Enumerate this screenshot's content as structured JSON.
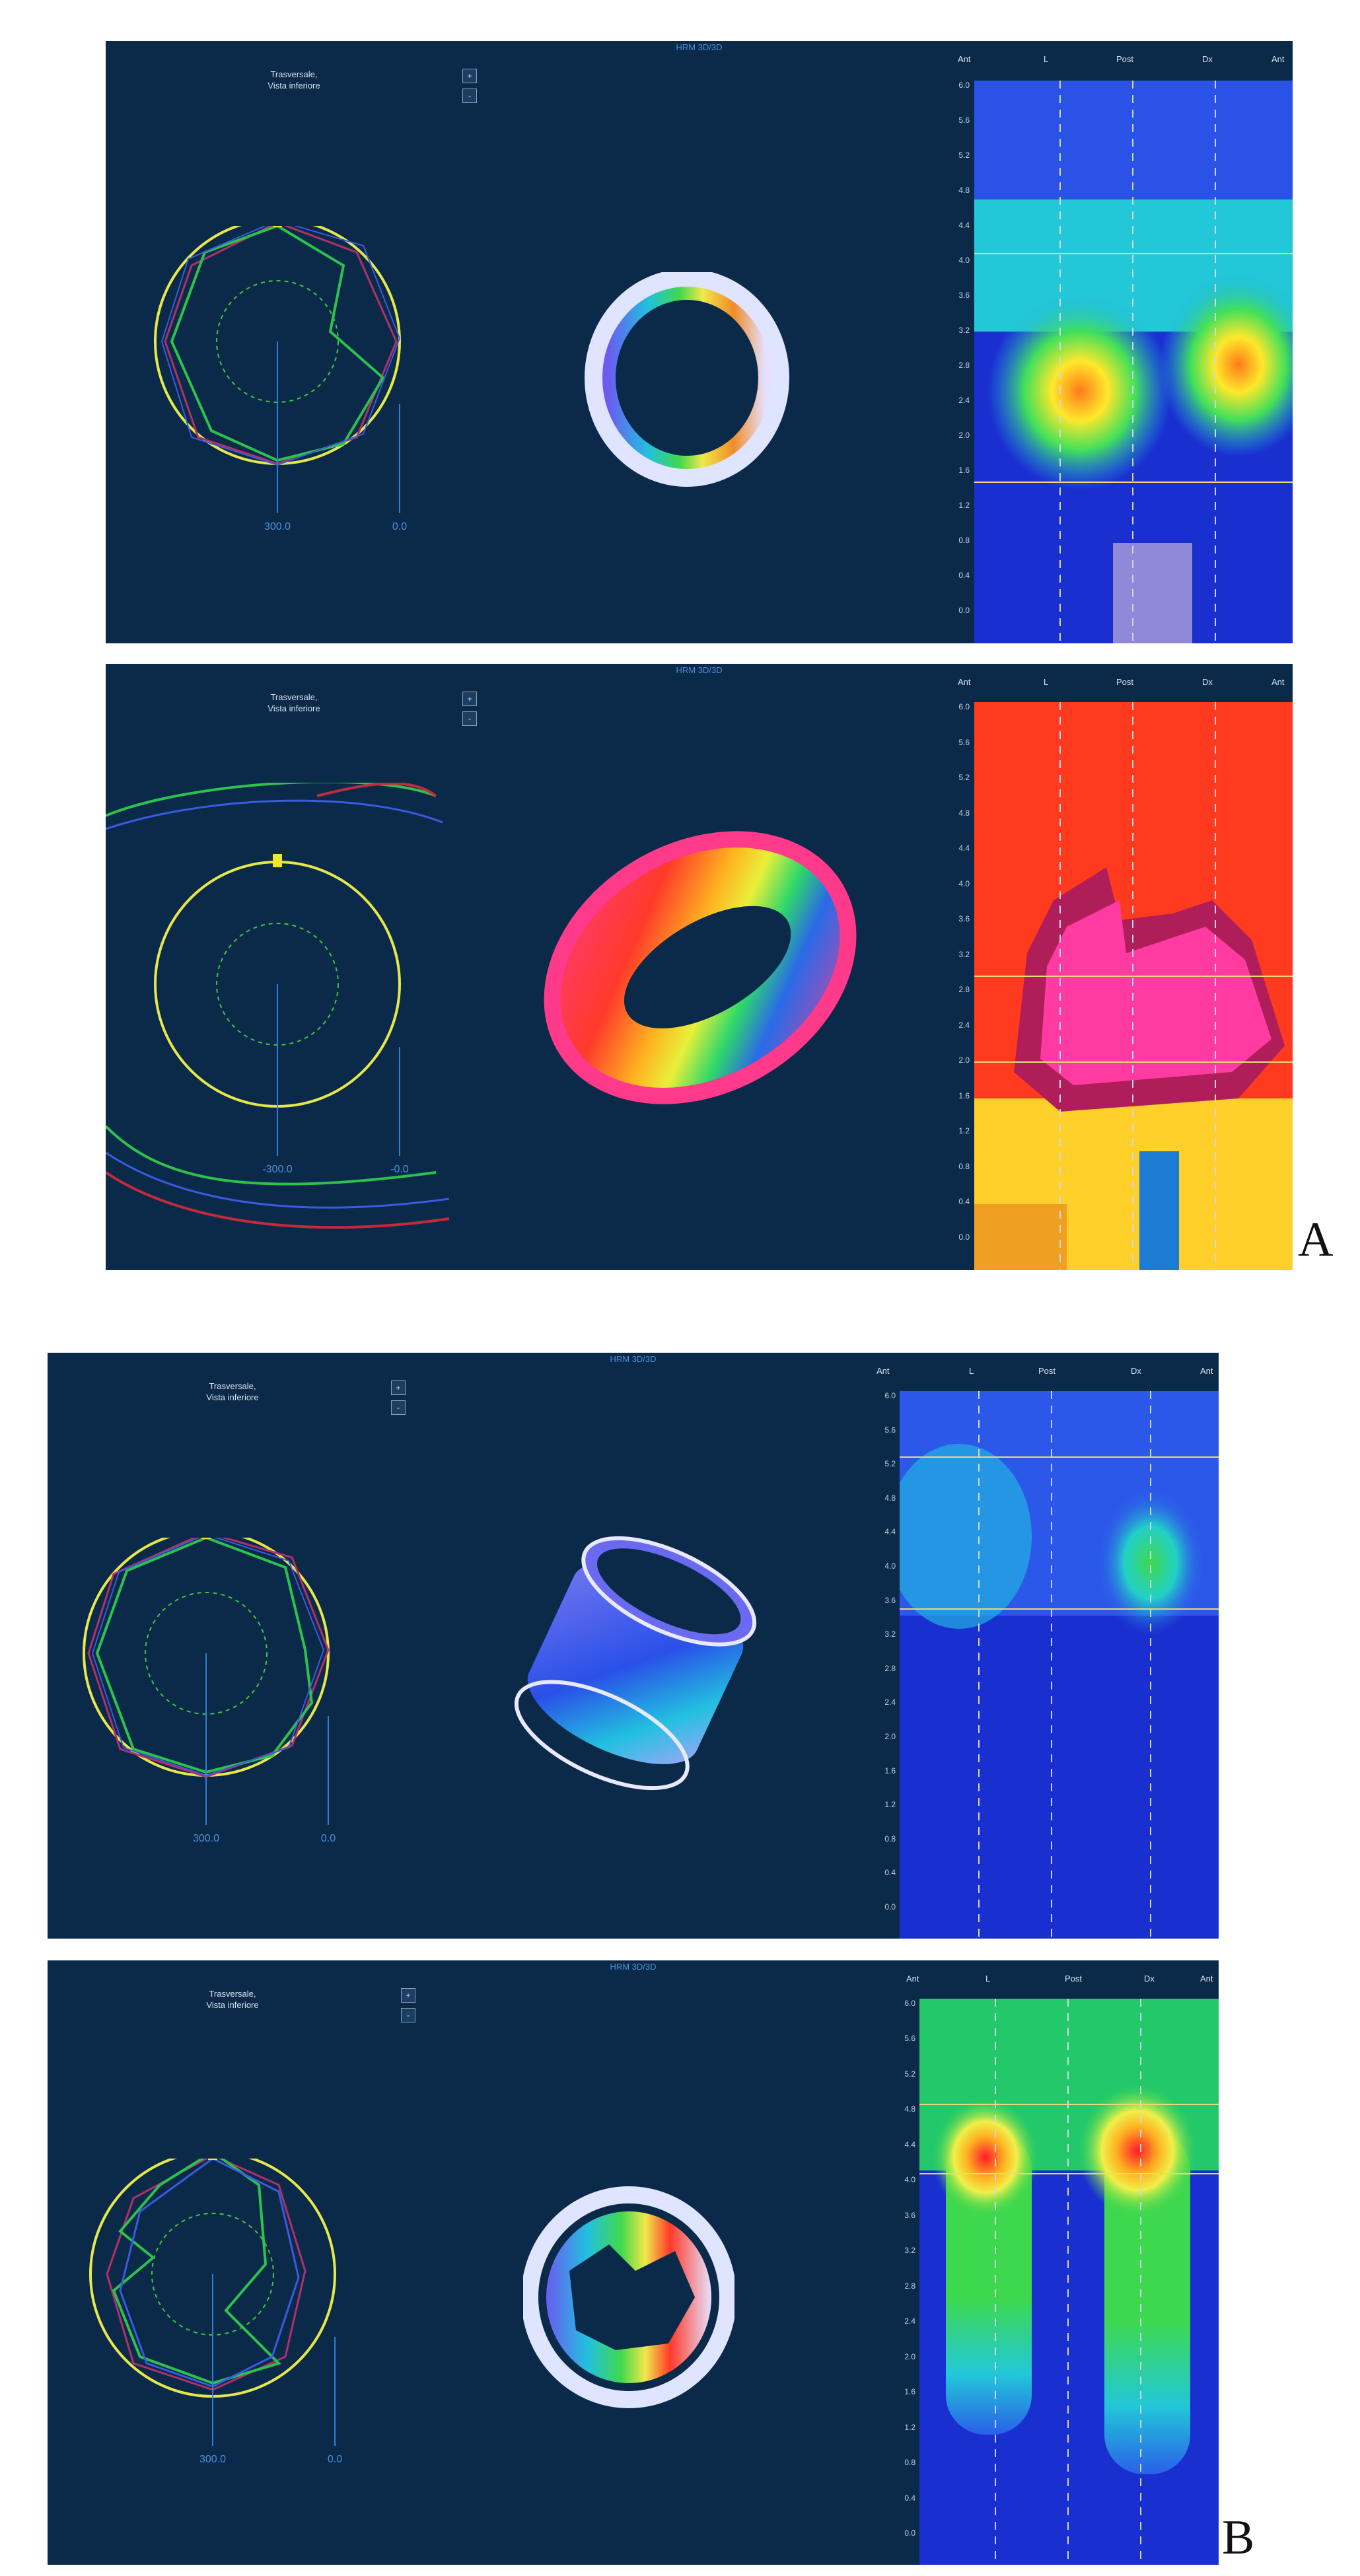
{
  "figure": {
    "label_a": "A",
    "label_b": "B"
  },
  "panels": [
    {
      "header": "HRM 3D/3D",
      "view_label_line1": "Trasversale,",
      "view_label_line2": "Vista inferiore",
      "ctrl_top": "+",
      "ctrl_bottom": "-",
      "polar_scale_left": "300.0",
      "polar_scale_right": "0.0",
      "heatmap_columns": [
        "Ant",
        "L",
        "Post",
        "Dx",
        "Ant"
      ],
      "heatmap_ticks": [
        "6.0",
        "5.6",
        "5.2",
        "4.8",
        "4.4",
        "4.0",
        "3.6",
        "3.2",
        "2.8",
        "2.4",
        "2.0",
        "1.6",
        "1.2",
        "0.8",
        "0.4",
        "0.0"
      ]
    },
    {
      "header": "HRM 3D/3D",
      "view_label_line1": "Trasversale,",
      "view_label_line2": "Vista inferiore",
      "ctrl_top": "+",
      "ctrl_bottom": "-",
      "polar_scale_left": "-300.0",
      "polar_scale_right": "-0.0",
      "heatmap_columns": [
        "Ant",
        "L",
        "Post",
        "Dx",
        "Ant"
      ],
      "heatmap_ticks": [
        "6.0",
        "5.6",
        "5.2",
        "4.8",
        "4.4",
        "4.0",
        "3.6",
        "3.2",
        "2.8",
        "2.4",
        "2.0",
        "1.6",
        "1.2",
        "0.8",
        "0.4",
        "0.0"
      ]
    },
    {
      "header": "HRM 3D/3D",
      "view_label_line1": "Trasversale,",
      "view_label_line2": "Vista inferiore",
      "ctrl_top": "+",
      "ctrl_bottom": "-",
      "polar_scale_left": "300.0",
      "polar_scale_right": "0.0",
      "heatmap_columns": [
        "Ant",
        "L",
        "Post",
        "Dx",
        "Ant"
      ],
      "heatmap_ticks": [
        "6.0",
        "5.6",
        "5.2",
        "4.8",
        "4.4",
        "4.0",
        "3.6",
        "3.2",
        "2.8",
        "2.4",
        "2.0",
        "1.6",
        "1.2",
        "0.8",
        "0.4",
        "0.0"
      ]
    },
    {
      "header": "HRM 3D/3D",
      "view_label_line1": "Trasversale,",
      "view_label_line2": "Vista inferiore",
      "ctrl_top": "+",
      "ctrl_bottom": "-",
      "polar_scale_left": "300.0",
      "polar_scale_right": "0.0",
      "heatmap_columns": [
        "Ant",
        "L",
        "Post",
        "Dx",
        "Ant"
      ],
      "heatmap_ticks": [
        "6.0",
        "5.6",
        "5.2",
        "4.8",
        "4.4",
        "4.0",
        "3.6",
        "3.2",
        "2.8",
        "2.4",
        "2.0",
        "1.6",
        "1.2",
        "0.8",
        "0.4",
        "0.0"
      ]
    }
  ],
  "colors": {
    "panel_background": "#0b2a4a",
    "heatmap_low": "#1a2fd0",
    "heatmap_high": "#ff3a8a"
  }
}
